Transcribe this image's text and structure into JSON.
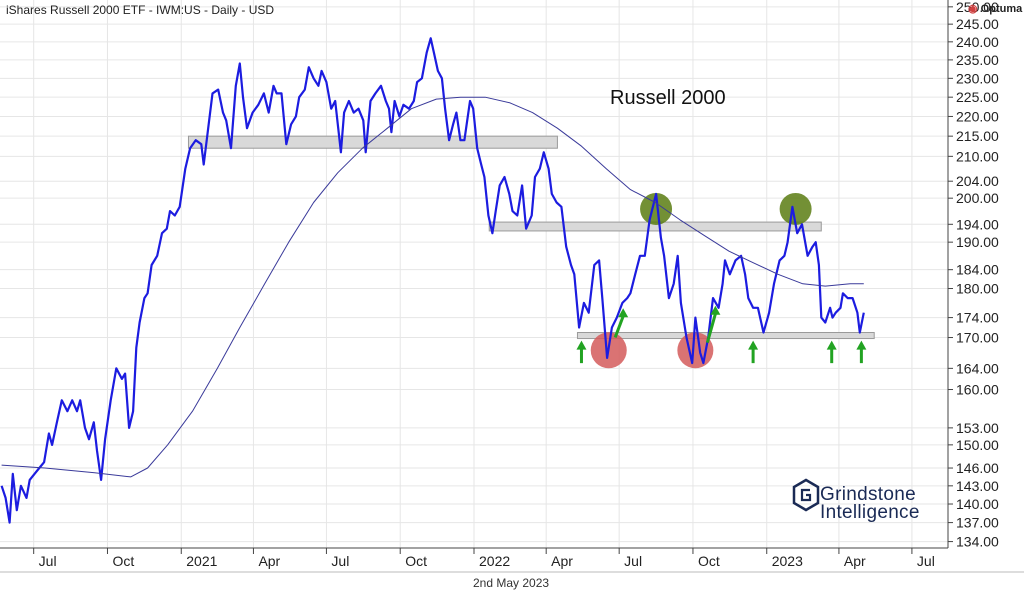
{
  "header": {
    "title": "iShares Russell 2000 ETF - IWM:US - Daily - USD"
  },
  "brand": {
    "label": "Optuma"
  },
  "footer": {
    "date": "2nd May 2023"
  },
  "watermark": {
    "line1": "Grindstone",
    "line2": "Intelligence"
  },
  "colors": {
    "price": "#1c1ce0",
    "ma": "#3a3a9a",
    "zone_fill": "#d9d9d9",
    "zone_stroke": "#9a9a9a",
    "top_marker": "#5a7d12",
    "bottom_marker": "#d45a5a",
    "arrow": "#22a322",
    "grid": "#e6e6e6"
  },
  "chart_data": {
    "type": "line",
    "title": "Russell 2000",
    "x_ticks": [
      "Jul",
      "Oct",
      "2021",
      "Apr",
      "Jul",
      "Oct",
      "2022",
      "Apr",
      "Jul",
      "Oct",
      "2023",
      "Apr",
      "Jul"
    ],
    "x_tick_dates": [
      "2020-07-01",
      "2020-10-01",
      "2021-01-01",
      "2021-04-01",
      "2021-07-01",
      "2021-10-01",
      "2022-01-01",
      "2022-04-01",
      "2022-07-01",
      "2022-10-01",
      "2023-01-01",
      "2023-04-01",
      "2023-07-01"
    ],
    "y_ticks": [
      "250.00",
      "245.00",
      "240.00",
      "235.00",
      "230.00",
      "225.00",
      "220.00",
      "215.00",
      "210.00",
      "204.00",
      "200.00",
      "194.00",
      "190.00",
      "184.00",
      "180.00",
      "174.00",
      "170.00",
      "164.00",
      "160.00",
      "153.00",
      "150.00",
      "146.00",
      "143.00",
      "140.00",
      "137.00",
      "134.00"
    ],
    "y_scale": "log",
    "ylim": [
      133,
      252
    ],
    "xlim": [
      "2020-05-20",
      "2023-08-15"
    ],
    "series": [
      {
        "values": [
          [
            "2020-05-22",
            143
          ],
          [
            "2020-05-27",
            141
          ],
          [
            "2020-06-01",
            137
          ],
          [
            "2020-06-05",
            145
          ],
          [
            "2020-06-10",
            139
          ],
          [
            "2020-06-15",
            143
          ],
          [
            "2020-06-22",
            141
          ],
          [
            "2020-06-26",
            144
          ],
          [
            "2020-07-02",
            145
          ],
          [
            "2020-07-08",
            146
          ],
          [
            "2020-07-14",
            147
          ],
          [
            "2020-07-20",
            152
          ],
          [
            "2020-07-24",
            150
          ],
          [
            "2020-07-30",
            154
          ],
          [
            "2020-08-05",
            158
          ],
          [
            "2020-08-12",
            156
          ],
          [
            "2020-08-18",
            158
          ],
          [
            "2020-08-24",
            156
          ],
          [
            "2020-08-28",
            158
          ],
          [
            "2020-09-03",
            153
          ],
          [
            "2020-09-08",
            151
          ],
          [
            "2020-09-14",
            154
          ],
          [
            "2020-09-18",
            149
          ],
          [
            "2020-09-23",
            144
          ],
          [
            "2020-09-28",
            151
          ],
          [
            "2020-10-05",
            158
          ],
          [
            "2020-10-12",
            164
          ],
          [
            "2020-10-19",
            162
          ],
          [
            "2020-10-23",
            163
          ],
          [
            "2020-10-28",
            153
          ],
          [
            "2020-11-02",
            156
          ],
          [
            "2020-11-06",
            168
          ],
          [
            "2020-11-10",
            173
          ],
          [
            "2020-11-16",
            178
          ],
          [
            "2020-11-20",
            179
          ],
          [
            "2020-11-25",
            185
          ],
          [
            "2020-12-02",
            187
          ],
          [
            "2020-12-08",
            192
          ],
          [
            "2020-12-14",
            193
          ],
          [
            "2020-12-18",
            197
          ],
          [
            "2020-12-24",
            196
          ],
          [
            "2020-12-30",
            198
          ],
          [
            "2021-01-06",
            207
          ],
          [
            "2021-01-12",
            212
          ],
          [
            "2021-01-19",
            214
          ],
          [
            "2021-01-26",
            213
          ],
          [
            "2021-01-29",
            208
          ],
          [
            "2021-02-03",
            216
          ],
          [
            "2021-02-09",
            226
          ],
          [
            "2021-02-16",
            227
          ],
          [
            "2021-02-22",
            221
          ],
          [
            "2021-02-26",
            219
          ],
          [
            "2021-03-04",
            212
          ],
          [
            "2021-03-10",
            228
          ],
          [
            "2021-03-15",
            234
          ],
          [
            "2021-03-19",
            225
          ],
          [
            "2021-03-24",
            217
          ],
          [
            "2021-03-31",
            221
          ],
          [
            "2021-04-07",
            223
          ],
          [
            "2021-04-14",
            226
          ],
          [
            "2021-04-20",
            221
          ],
          [
            "2021-04-26",
            228
          ],
          [
            "2021-04-30",
            226
          ],
          [
            "2021-05-06",
            226
          ],
          [
            "2021-05-12",
            213
          ],
          [
            "2021-05-18",
            218
          ],
          [
            "2021-05-24",
            220
          ],
          [
            "2021-05-28",
            225
          ],
          [
            "2021-06-04",
            227
          ],
          [
            "2021-06-09",
            233
          ],
          [
            "2021-06-15",
            230
          ],
          [
            "2021-06-21",
            228
          ],
          [
            "2021-06-25",
            232
          ],
          [
            "2021-07-01",
            229
          ],
          [
            "2021-07-07",
            222
          ],
          [
            "2021-07-12",
            224
          ],
          [
            "2021-07-19",
            211
          ],
          [
            "2021-07-23",
            221
          ],
          [
            "2021-07-29",
            224
          ],
          [
            "2021-08-04",
            221
          ],
          [
            "2021-08-10",
            222
          ],
          [
            "2021-08-16",
            219
          ],
          [
            "2021-08-19",
            211
          ],
          [
            "2021-08-25",
            224
          ],
          [
            "2021-08-31",
            226
          ],
          [
            "2021-09-07",
            228
          ],
          [
            "2021-09-13",
            224
          ],
          [
            "2021-09-17",
            222
          ],
          [
            "2021-09-20",
            216
          ],
          [
            "2021-09-24",
            224
          ],
          [
            "2021-09-30",
            220
          ],
          [
            "2021-10-05",
            223
          ],
          [
            "2021-10-12",
            222
          ],
          [
            "2021-10-18",
            224
          ],
          [
            "2021-10-22",
            229
          ],
          [
            "2021-10-28",
            230
          ],
          [
            "2021-11-03",
            237
          ],
          [
            "2021-11-08",
            241
          ],
          [
            "2021-11-12",
            237
          ],
          [
            "2021-11-17",
            232
          ],
          [
            "2021-11-22",
            230
          ],
          [
            "2021-11-26",
            222
          ],
          [
            "2021-12-01",
            214
          ],
          [
            "2021-12-06",
            218
          ],
          [
            "2021-12-10",
            221
          ],
          [
            "2021-12-15",
            214
          ],
          [
            "2021-12-20",
            214
          ],
          [
            "2021-12-27",
            224
          ],
          [
            "2021-12-31",
            222
          ],
          [
            "2022-01-05",
            212
          ],
          [
            "2022-01-10",
            208
          ],
          [
            "2022-01-14",
            205
          ],
          [
            "2022-01-19",
            196
          ],
          [
            "2022-01-24",
            192
          ],
          [
            "2022-01-28",
            197
          ],
          [
            "2022-02-02",
            203
          ],
          [
            "2022-02-08",
            205
          ],
          [
            "2022-02-14",
            201
          ],
          [
            "2022-02-18",
            197
          ],
          [
            "2022-02-24",
            196
          ],
          [
            "2022-03-02",
            203
          ],
          [
            "2022-03-07",
            193
          ],
          [
            "2022-03-14",
            196
          ],
          [
            "2022-03-18",
            205
          ],
          [
            "2022-03-24",
            207
          ],
          [
            "2022-03-29",
            211
          ],
          [
            "2022-04-04",
            207
          ],
          [
            "2022-04-08",
            201
          ],
          [
            "2022-04-14",
            199
          ],
          [
            "2022-04-20",
            198
          ],
          [
            "2022-04-26",
            189
          ],
          [
            "2022-05-02",
            185
          ],
          [
            "2022-05-06",
            183
          ],
          [
            "2022-05-12",
            172
          ],
          [
            "2022-05-18",
            177
          ],
          [
            "2022-05-24",
            175
          ],
          [
            "2022-05-31",
            185
          ],
          [
            "2022-06-06",
            186
          ],
          [
            "2022-06-10",
            178
          ],
          [
            "2022-06-16",
            166
          ],
          [
            "2022-06-22",
            172
          ],
          [
            "2022-06-28",
            174
          ],
          [
            "2022-07-05",
            177
          ],
          [
            "2022-07-11",
            178
          ],
          [
            "2022-07-15",
            179
          ],
          [
            "2022-07-21",
            183
          ],
          [
            "2022-07-27",
            187
          ],
          [
            "2022-08-02",
            187
          ],
          [
            "2022-08-08",
            195
          ],
          [
            "2022-08-12",
            198
          ],
          [
            "2022-08-16",
            201
          ],
          [
            "2022-08-22",
            191
          ],
          [
            "2022-08-26",
            187
          ],
          [
            "2022-09-01",
            178
          ],
          [
            "2022-09-07",
            181
          ],
          [
            "2022-09-12",
            187
          ],
          [
            "2022-09-16",
            177
          ],
          [
            "2022-09-23",
            170
          ],
          [
            "2022-09-30",
            165
          ],
          [
            "2022-10-04",
            174
          ],
          [
            "2022-10-10",
            167
          ],
          [
            "2022-10-14",
            165
          ],
          [
            "2022-10-20",
            170
          ],
          [
            "2022-10-26",
            178
          ],
          [
            "2022-11-02",
            176
          ],
          [
            "2022-11-07",
            181
          ],
          [
            "2022-11-10",
            186
          ],
          [
            "2022-11-16",
            183
          ],
          [
            "2022-11-23",
            186
          ],
          [
            "2022-11-30",
            187
          ],
          [
            "2022-12-05",
            183
          ],
          [
            "2022-12-09",
            178
          ],
          [
            "2022-12-15",
            176
          ],
          [
            "2022-12-21",
            176
          ],
          [
            "2022-12-28",
            171
          ],
          [
            "2023-01-04",
            175
          ],
          [
            "2023-01-10",
            181
          ],
          [
            "2023-01-17",
            186
          ],
          [
            "2023-01-23",
            187
          ],
          [
            "2023-01-27",
            190
          ],
          [
            "2023-02-02",
            198
          ],
          [
            "2023-02-08",
            192
          ],
          [
            "2023-02-14",
            194
          ],
          [
            "2023-02-21",
            187
          ],
          [
            "2023-02-27",
            189
          ],
          [
            "2023-03-03",
            190
          ],
          [
            "2023-03-07",
            185
          ],
          [
            "2023-03-10",
            174
          ],
          [
            "2023-03-15",
            173
          ],
          [
            "2023-03-21",
            176
          ],
          [
            "2023-03-24",
            174
          ],
          [
            "2023-03-28",
            175
          ],
          [
            "2023-04-03",
            176
          ],
          [
            "2023-04-06",
            179
          ],
          [
            "2023-04-12",
            178
          ],
          [
            "2023-04-18",
            178
          ],
          [
            "2023-04-24",
            175
          ],
          [
            "2023-04-27",
            171
          ],
          [
            "2023-05-02",
            175
          ]
        ]
      },
      {
        "values": [
          [
            "2020-05-22",
            146.5
          ],
          [
            "2020-07-15",
            146
          ],
          [
            "2020-09-15",
            145.2
          ],
          [
            "2020-10-30",
            144.5
          ],
          [
            "2020-11-20",
            146
          ],
          [
            "2020-12-15",
            150
          ],
          [
            "2021-01-15",
            156
          ],
          [
            "2021-02-15",
            164
          ],
          [
            "2021-03-15",
            172
          ],
          [
            "2021-04-15",
            181
          ],
          [
            "2021-05-15",
            190
          ],
          [
            "2021-06-15",
            199
          ],
          [
            "2021-07-15",
            206
          ],
          [
            "2021-08-15",
            212
          ],
          [
            "2021-09-15",
            217
          ],
          [
            "2021-10-15",
            222
          ],
          [
            "2021-11-15",
            224.5
          ],
          [
            "2021-12-15",
            225
          ],
          [
            "2022-01-15",
            225
          ],
          [
            "2022-02-15",
            223.5
          ],
          [
            "2022-03-15",
            221
          ],
          [
            "2022-04-15",
            217
          ],
          [
            "2022-05-15",
            212.5
          ],
          [
            "2022-06-15",
            207
          ],
          [
            "2022-07-15",
            202
          ],
          [
            "2022-08-15",
            199
          ],
          [
            "2022-09-15",
            195
          ],
          [
            "2022-10-15",
            191.5
          ],
          [
            "2022-11-15",
            188
          ],
          [
            "2022-12-15",
            185.5
          ],
          [
            "2023-01-15",
            183
          ],
          [
            "2023-02-15",
            181
          ],
          [
            "2023-03-15",
            180.5
          ],
          [
            "2023-04-15",
            181
          ],
          [
            "2023-05-02",
            181
          ]
        ]
      }
    ],
    "zones": [
      {
        "start": "2021-01-10",
        "end": "2022-04-15",
        "low": 212,
        "high": 215
      },
      {
        "start": "2022-01-20",
        "end": "2023-03-10",
        "low": 192.5,
        "high": 194.5
      },
      {
        "start": "2022-05-10",
        "end": "2023-05-15",
        "low": 169.8,
        "high": 171
      }
    ],
    "top_markers": [
      [
        "2022-08-16",
        197.5
      ],
      [
        "2023-02-06",
        197.5
      ]
    ],
    "bottom_markers": [
      [
        "2022-06-18",
        167.5
      ],
      [
        "2022-10-04",
        167.5
      ]
    ],
    "up_arrows": [
      {
        "x": "2022-05-15",
        "from": 165,
        "to": 169
      },
      {
        "x": "2022-06-26",
        "from": 170,
        "to": 175.5
      },
      {
        "x": "2022-10-19",
        "from": 169,
        "to": 176
      },
      {
        "x": "2022-12-15",
        "from": 165,
        "to": 169
      },
      {
        "x": "2023-03-23",
        "from": 165,
        "to": 169
      },
      {
        "x": "2023-04-29",
        "from": 165,
        "to": 169
      }
    ]
  }
}
